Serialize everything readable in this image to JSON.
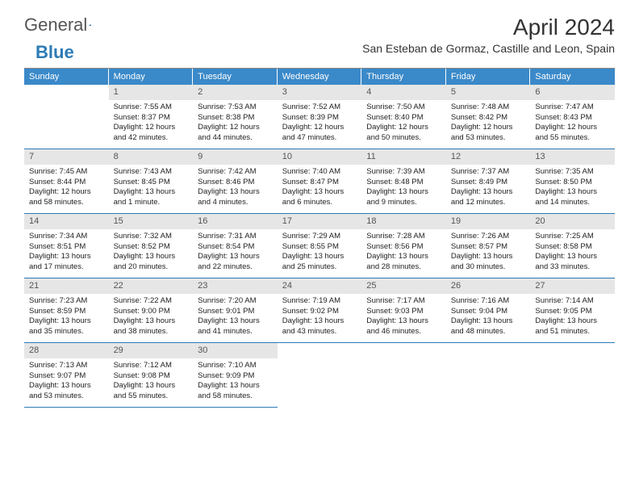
{
  "brand": {
    "text1": "General",
    "text2": "Blue"
  },
  "title": "April 2024",
  "location": "San Esteban de Gormaz, Castille and Leon, Spain",
  "colors": {
    "header_bg": "#3a89c9",
    "header_text": "#ffffff",
    "daybar_bg": "#e6e6e6",
    "border": "#2c7bb6",
    "logo_gray": "#555555",
    "logo_blue": "#2c7bb6"
  },
  "weekdays": [
    "Sunday",
    "Monday",
    "Tuesday",
    "Wednesday",
    "Thursday",
    "Friday",
    "Saturday"
  ],
  "first_weekday_index": 1,
  "days": [
    {
      "n": 1,
      "sunrise": "7:55 AM",
      "sunset": "8:37 PM",
      "daylight": "12 hours and 42 minutes."
    },
    {
      "n": 2,
      "sunrise": "7:53 AM",
      "sunset": "8:38 PM",
      "daylight": "12 hours and 44 minutes."
    },
    {
      "n": 3,
      "sunrise": "7:52 AM",
      "sunset": "8:39 PM",
      "daylight": "12 hours and 47 minutes."
    },
    {
      "n": 4,
      "sunrise": "7:50 AM",
      "sunset": "8:40 PM",
      "daylight": "12 hours and 50 minutes."
    },
    {
      "n": 5,
      "sunrise": "7:48 AM",
      "sunset": "8:42 PM",
      "daylight": "12 hours and 53 minutes."
    },
    {
      "n": 6,
      "sunrise": "7:47 AM",
      "sunset": "8:43 PM",
      "daylight": "12 hours and 55 minutes."
    },
    {
      "n": 7,
      "sunrise": "7:45 AM",
      "sunset": "8:44 PM",
      "daylight": "12 hours and 58 minutes."
    },
    {
      "n": 8,
      "sunrise": "7:43 AM",
      "sunset": "8:45 PM",
      "daylight": "13 hours and 1 minute."
    },
    {
      "n": 9,
      "sunrise": "7:42 AM",
      "sunset": "8:46 PM",
      "daylight": "13 hours and 4 minutes."
    },
    {
      "n": 10,
      "sunrise": "7:40 AM",
      "sunset": "8:47 PM",
      "daylight": "13 hours and 6 minutes."
    },
    {
      "n": 11,
      "sunrise": "7:39 AM",
      "sunset": "8:48 PM",
      "daylight": "13 hours and 9 minutes."
    },
    {
      "n": 12,
      "sunrise": "7:37 AM",
      "sunset": "8:49 PM",
      "daylight": "13 hours and 12 minutes."
    },
    {
      "n": 13,
      "sunrise": "7:35 AM",
      "sunset": "8:50 PM",
      "daylight": "13 hours and 14 minutes."
    },
    {
      "n": 14,
      "sunrise": "7:34 AM",
      "sunset": "8:51 PM",
      "daylight": "13 hours and 17 minutes."
    },
    {
      "n": 15,
      "sunrise": "7:32 AM",
      "sunset": "8:52 PM",
      "daylight": "13 hours and 20 minutes."
    },
    {
      "n": 16,
      "sunrise": "7:31 AM",
      "sunset": "8:54 PM",
      "daylight": "13 hours and 22 minutes."
    },
    {
      "n": 17,
      "sunrise": "7:29 AM",
      "sunset": "8:55 PM",
      "daylight": "13 hours and 25 minutes."
    },
    {
      "n": 18,
      "sunrise": "7:28 AM",
      "sunset": "8:56 PM",
      "daylight": "13 hours and 28 minutes."
    },
    {
      "n": 19,
      "sunrise": "7:26 AM",
      "sunset": "8:57 PM",
      "daylight": "13 hours and 30 minutes."
    },
    {
      "n": 20,
      "sunrise": "7:25 AM",
      "sunset": "8:58 PM",
      "daylight": "13 hours and 33 minutes."
    },
    {
      "n": 21,
      "sunrise": "7:23 AM",
      "sunset": "8:59 PM",
      "daylight": "13 hours and 35 minutes."
    },
    {
      "n": 22,
      "sunrise": "7:22 AM",
      "sunset": "9:00 PM",
      "daylight": "13 hours and 38 minutes."
    },
    {
      "n": 23,
      "sunrise": "7:20 AM",
      "sunset": "9:01 PM",
      "daylight": "13 hours and 41 minutes."
    },
    {
      "n": 24,
      "sunrise": "7:19 AM",
      "sunset": "9:02 PM",
      "daylight": "13 hours and 43 minutes."
    },
    {
      "n": 25,
      "sunrise": "7:17 AM",
      "sunset": "9:03 PM",
      "daylight": "13 hours and 46 minutes."
    },
    {
      "n": 26,
      "sunrise": "7:16 AM",
      "sunset": "9:04 PM",
      "daylight": "13 hours and 48 minutes."
    },
    {
      "n": 27,
      "sunrise": "7:14 AM",
      "sunset": "9:05 PM",
      "daylight": "13 hours and 51 minutes."
    },
    {
      "n": 28,
      "sunrise": "7:13 AM",
      "sunset": "9:07 PM",
      "daylight": "13 hours and 53 minutes."
    },
    {
      "n": 29,
      "sunrise": "7:12 AM",
      "sunset": "9:08 PM",
      "daylight": "13 hours and 55 minutes."
    },
    {
      "n": 30,
      "sunrise": "7:10 AM",
      "sunset": "9:09 PM",
      "daylight": "13 hours and 58 minutes."
    }
  ],
  "labels": {
    "sunrise": "Sunrise:",
    "sunset": "Sunset:",
    "daylight": "Daylight:"
  }
}
